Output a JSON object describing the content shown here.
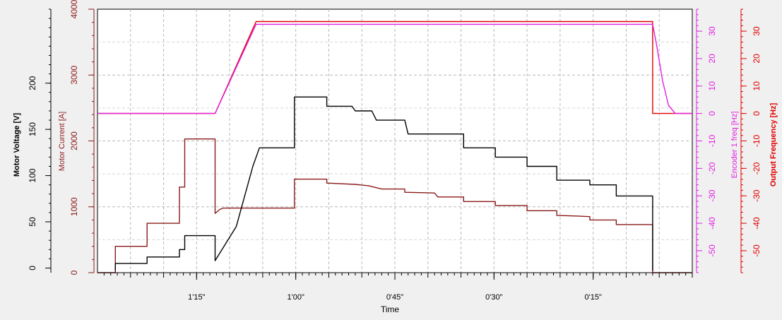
{
  "chart_data": {
    "type": "line",
    "xlabel": "Time",
    "x_direction": "decreasing",
    "xlim": [
      90,
      0
    ],
    "x_ticks": [
      {
        "label": "1'15\"",
        "value": 75
      },
      {
        "label": "1'00\"",
        "value": 60
      },
      {
        "label": "0'45\"",
        "value": 45
      },
      {
        "label": "0'30\"",
        "value": 30
      },
      {
        "label": "0'15\"",
        "value": 15
      }
    ],
    "grid": true,
    "axes": {
      "voltage": {
        "label": "Motor Voltage [V]",
        "side": "left",
        "color": "#000000",
        "ylim": [
          -5,
          280
        ],
        "ticks": [
          0,
          50,
          100,
          150,
          200
        ]
      },
      "current": {
        "label": "Motor Current [A]",
        "side": "left",
        "color": "#8b1a1a",
        "ylim": [
          0,
          4000
        ],
        "ticks": [
          0,
          1000,
          2000,
          3000,
          4000
        ]
      },
      "encoder": {
        "label": "Encoder 1 freq [Hz]",
        "side": "right",
        "color": "#e020e0",
        "ylim": [
          -58,
          38
        ],
        "ticks": [
          -50,
          -40,
          -30,
          -20,
          -10,
          0,
          10,
          20,
          30
        ]
      },
      "output": {
        "label": "Output Frequency [Hz]",
        "side": "right",
        "color": "#e00000",
        "ylim": [
          -58,
          38
        ],
        "ticks": [
          -50,
          -40,
          -30,
          -20,
          -10,
          0,
          10,
          20,
          30
        ]
      }
    },
    "series": [
      {
        "axis": "current",
        "color": "#8b1a1a",
        "points": [
          [
            90,
            0
          ],
          [
            87.3,
            0
          ],
          [
            87.3,
            400
          ],
          [
            82.5,
            400
          ],
          [
            82.5,
            750
          ],
          [
            77.6,
            750
          ],
          [
            77.6,
            1300
          ],
          [
            76.8,
            1300
          ],
          [
            76.8,
            2030
          ],
          [
            72.2,
            2030
          ],
          [
            72.2,
            900
          ],
          [
            71.5,
            960
          ],
          [
            71,
            980
          ],
          [
            60.2,
            980
          ],
          [
            60.2,
            1420
          ],
          [
            55.3,
            1420
          ],
          [
            55.3,
            1360
          ],
          [
            51,
            1340
          ],
          [
            49,
            1320
          ],
          [
            47,
            1270
          ],
          [
            43.5,
            1270
          ],
          [
            43.5,
            1220
          ],
          [
            39,
            1210
          ],
          [
            38.5,
            1150
          ],
          [
            34.6,
            1150
          ],
          [
            34.6,
            1080
          ],
          [
            29.8,
            1080
          ],
          [
            29.8,
            1020
          ],
          [
            25,
            1020
          ],
          [
            25,
            940
          ],
          [
            20.5,
            940
          ],
          [
            20.5,
            870
          ],
          [
            17.5,
            860
          ],
          [
            15.5,
            850
          ],
          [
            15.5,
            800
          ],
          [
            11.5,
            800
          ],
          [
            11.5,
            730
          ],
          [
            6,
            730
          ],
          [
            6,
            0
          ],
          [
            0,
            0
          ]
        ]
      },
      {
        "axis": "voltage",
        "color": "#000000",
        "points": [
          [
            87.3,
            -3
          ],
          [
            87.3,
            5
          ],
          [
            82.5,
            5
          ],
          [
            82.5,
            12
          ],
          [
            77.6,
            12
          ],
          [
            77.6,
            20
          ],
          [
            76.8,
            20
          ],
          [
            76.8,
            35
          ],
          [
            72.2,
            35
          ],
          [
            72.2,
            8
          ],
          [
            69,
            45
          ],
          [
            66.5,
            110
          ],
          [
            65.5,
            130
          ],
          [
            60.2,
            130
          ],
          [
            60.2,
            185
          ],
          [
            55.3,
            185
          ],
          [
            55.3,
            175
          ],
          [
            51.5,
            175
          ],
          [
            51,
            170
          ],
          [
            48.5,
            170
          ],
          [
            47.8,
            160
          ],
          [
            43.5,
            160
          ],
          [
            43,
            145
          ],
          [
            34.6,
            145
          ],
          [
            34.6,
            130
          ],
          [
            29.8,
            130
          ],
          [
            29.8,
            120
          ],
          [
            25,
            120
          ],
          [
            25,
            110
          ],
          [
            20.5,
            110
          ],
          [
            20.5,
            95
          ],
          [
            15.5,
            95
          ],
          [
            15.5,
            90
          ],
          [
            11.5,
            90
          ],
          [
            11.5,
            78
          ],
          [
            6,
            78
          ],
          [
            6,
            -3
          ]
        ]
      },
      {
        "axis": "output",
        "color": "#e00000",
        "points": [
          [
            90,
            0
          ],
          [
            72.2,
            0
          ],
          [
            66,
            33.5
          ],
          [
            6,
            33.5
          ],
          [
            6,
            0
          ],
          [
            0,
            0
          ]
        ]
      },
      {
        "axis": "encoder",
        "color": "#e020e0",
        "points": [
          [
            90,
            0
          ],
          [
            72.2,
            0
          ],
          [
            66,
            32.5
          ],
          [
            6,
            32.5
          ],
          [
            5.4,
            25
          ],
          [
            4.5,
            12
          ],
          [
            3.6,
            3
          ],
          [
            2.6,
            0
          ],
          [
            0,
            0
          ]
        ]
      }
    ]
  }
}
